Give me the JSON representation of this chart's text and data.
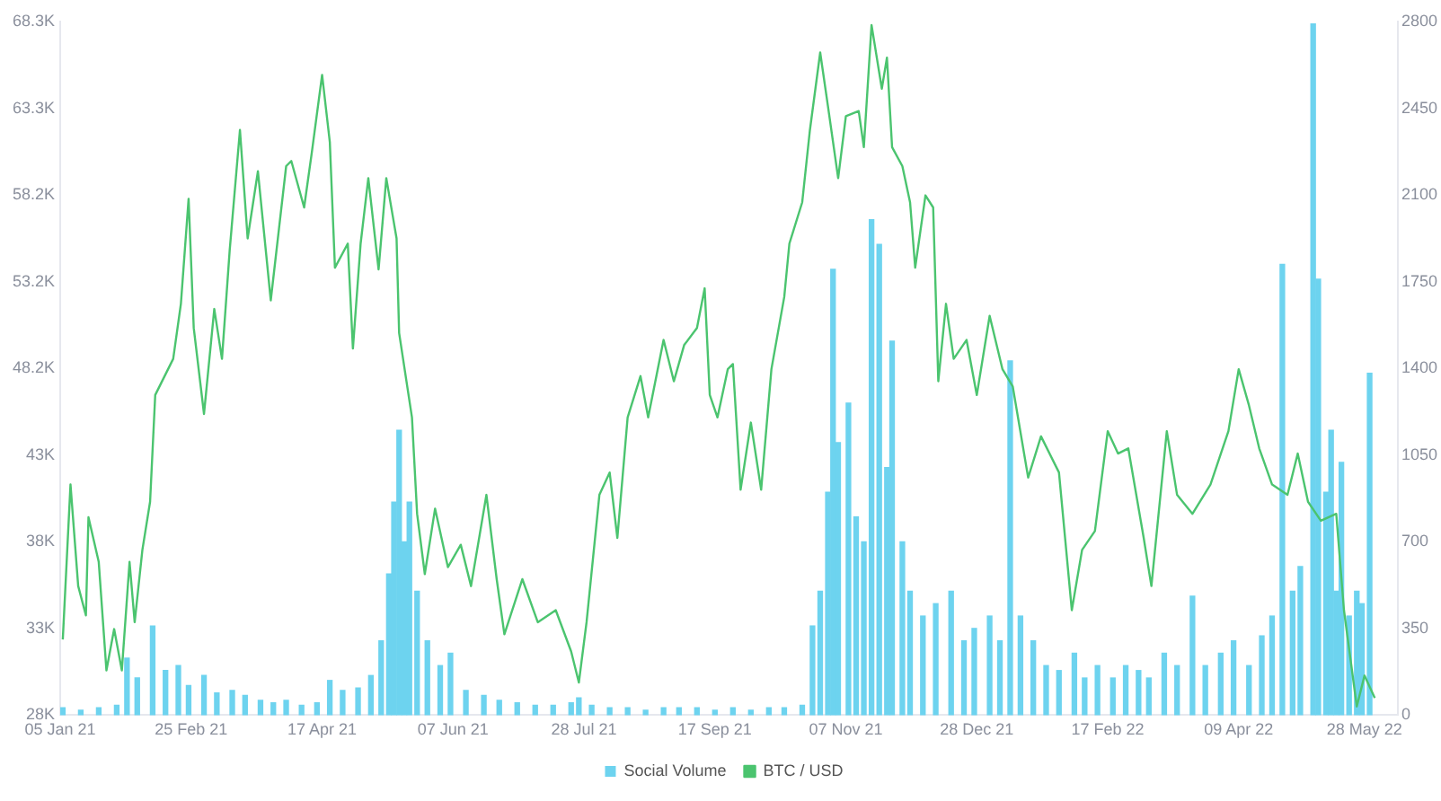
{
  "chart_data": {
    "type": "line",
    "legend": "bottom",
    "grid": false,
    "marker": "none",
    "xlim": [
      "2021-01-05",
      "2022-06-10"
    ],
    "xticks": [
      {
        "value": "2021-01-05",
        "label": "05 Jan 21"
      },
      {
        "value": "2021-02-25",
        "label": "25 Feb 21"
      },
      {
        "value": "2021-04-17",
        "label": "17 Apr 21"
      },
      {
        "value": "2021-06-07",
        "label": "07 Jun 21"
      },
      {
        "value": "2021-07-28",
        "label": "28 Jul 21"
      },
      {
        "value": "2021-09-17",
        "label": "17 Sep 21"
      },
      {
        "value": "2021-11-07",
        "label": "07 Nov 21"
      },
      {
        "value": "2021-12-28",
        "label": "28 Dec 21"
      },
      {
        "value": "2022-02-17",
        "label": "17 Feb 22"
      },
      {
        "value": "2022-04-09",
        "label": "09 Apr 22"
      },
      {
        "value": "2022-05-28",
        "label": "28 May 22"
      }
    ],
    "ylim": [
      28000,
      68300
    ],
    "yticks": [
      {
        "value": 28000,
        "label": "28K"
      },
      {
        "value": 33040,
        "label": "33K"
      },
      {
        "value": 38080,
        "label": "38K"
      },
      {
        "value": 43110,
        "label": "43K"
      },
      {
        "value": 48150,
        "label": "48.2K"
      },
      {
        "value": 53190,
        "label": "53.2K"
      },
      {
        "value": 58220,
        "label": "58.2K"
      },
      {
        "value": 63260,
        "label": "63.3K"
      },
      {
        "value": 68300,
        "label": "68.3K"
      }
    ],
    "y2lim": [
      0,
      2800
    ],
    "y2ticks": [
      0,
      350,
      700,
      1050,
      1400,
      1750,
      2100,
      2450,
      2800
    ],
    "series": [
      {
        "name": "Social Volume",
        "type": "bar",
        "axis": "y2",
        "color": "#6dd3ef",
        "x": [
          "2021-01-06",
          "2021-01-13",
          "2021-01-20",
          "2021-01-27",
          "2021-01-31",
          "2021-02-04",
          "2021-02-10",
          "2021-02-15",
          "2021-02-20",
          "2021-02-24",
          "2021-03-02",
          "2021-03-07",
          "2021-03-13",
          "2021-03-18",
          "2021-03-24",
          "2021-03-29",
          "2021-04-03",
          "2021-04-09",
          "2021-04-15",
          "2021-04-20",
          "2021-04-25",
          "2021-05-01",
          "2021-05-06",
          "2021-05-10",
          "2021-05-13",
          "2021-05-15",
          "2021-05-17",
          "2021-05-19",
          "2021-05-21",
          "2021-05-24",
          "2021-05-28",
          "2021-06-02",
          "2021-06-06",
          "2021-06-12",
          "2021-06-19",
          "2021-06-25",
          "2021-07-02",
          "2021-07-09",
          "2021-07-16",
          "2021-07-23",
          "2021-07-26",
          "2021-07-31",
          "2021-08-07",
          "2021-08-14",
          "2021-08-21",
          "2021-08-28",
          "2021-09-03",
          "2021-09-10",
          "2021-09-17",
          "2021-09-24",
          "2021-10-01",
          "2021-10-08",
          "2021-10-14",
          "2021-10-21",
          "2021-10-25",
          "2021-10-28",
          "2021-10-31",
          "2021-11-02",
          "2021-11-04",
          "2021-11-08",
          "2021-11-11",
          "2021-11-14",
          "2021-11-17",
          "2021-11-20",
          "2021-11-23",
          "2021-11-25",
          "2021-11-29",
          "2021-12-02",
          "2021-12-07",
          "2021-12-12",
          "2021-12-18",
          "2021-12-23",
          "2021-12-27",
          "2022-01-02",
          "2022-01-06",
          "2022-01-10",
          "2022-01-14",
          "2022-01-19",
          "2022-01-24",
          "2022-01-29",
          "2022-02-04",
          "2022-02-08",
          "2022-02-13",
          "2022-02-19",
          "2022-02-24",
          "2022-03-01",
          "2022-03-05",
          "2022-03-11",
          "2022-03-16",
          "2022-03-22",
          "2022-03-27",
          "2022-04-02",
          "2022-04-07",
          "2022-04-13",
          "2022-04-18",
          "2022-04-22",
          "2022-04-26",
          "2022-04-30",
          "2022-05-03",
          "2022-05-08",
          "2022-05-10",
          "2022-05-13",
          "2022-05-15",
          "2022-05-17",
          "2022-05-19",
          "2022-05-22",
          "2022-05-25",
          "2022-05-27",
          "2022-05-30"
        ],
        "values": [
          30,
          20,
          30,
          40,
          230,
          150,
          360,
          180,
          200,
          120,
          160,
          90,
          100,
          80,
          60,
          50,
          60,
          40,
          50,
          140,
          100,
          110,
          160,
          300,
          570,
          860,
          1150,
          700,
          860,
          500,
          300,
          200,
          250,
          100,
          80,
          60,
          50,
          40,
          40,
          50,
          70,
          40,
          30,
          30,
          20,
          30,
          30,
          30,
          20,
          30,
          20,
          30,
          30,
          40,
          360,
          500,
          900,
          1800,
          1100,
          1260,
          800,
          700,
          2000,
          1900,
          1000,
          1510,
          700,
          500,
          400,
          450,
          500,
          300,
          350,
          400,
          300,
          1430,
          400,
          300,
          200,
          180,
          250,
          150,
          200,
          150,
          200,
          180,
          150,
          250,
          200,
          480,
          200,
          250,
          300,
          200,
          320,
          400,
          1820,
          500,
          600,
          2790,
          1760,
          900,
          1150,
          500,
          1020,
          400,
          500,
          450,
          1380
        ]
      },
      {
        "name": "BTC / USD",
        "color": "#4bc46f",
        "x": [
          "2021-01-06",
          "2021-01-09",
          "2021-01-12",
          "2021-01-15",
          "2021-01-16",
          "2021-01-20",
          "2021-01-23",
          "2021-01-26",
          "2021-01-29",
          "2021-02-01",
          "2021-02-03",
          "2021-02-06",
          "2021-02-09",
          "2021-02-11",
          "2021-02-18",
          "2021-02-21",
          "2021-02-24",
          "2021-02-26",
          "2021-03-02",
          "2021-03-06",
          "2021-03-09",
          "2021-03-12",
          "2021-03-16",
          "2021-03-19",
          "2021-03-23",
          "2021-03-28",
          "2021-04-03",
          "2021-04-05",
          "2021-04-10",
          "2021-04-13",
          "2021-04-17",
          "2021-04-20",
          "2021-04-22",
          "2021-04-27",
          "2021-04-29",
          "2021-05-02",
          "2021-05-05",
          "2021-05-09",
          "2021-05-12",
          "2021-05-16",
          "2021-05-17",
          "2021-05-22",
          "2021-05-24",
          "2021-05-27",
          "2021-05-31",
          "2021-06-05",
          "2021-06-10",
          "2021-06-14",
          "2021-06-20",
          "2021-06-24",
          "2021-06-27",
          "2021-07-04",
          "2021-07-10",
          "2021-07-17",
          "2021-07-23",
          "2021-07-26",
          "2021-07-29",
          "2021-08-03",
          "2021-08-07",
          "2021-08-10",
          "2021-08-14",
          "2021-08-19",
          "2021-08-22",
          "2021-08-28",
          "2021-09-01",
          "2021-09-05",
          "2021-09-10",
          "2021-09-13",
          "2021-09-15",
          "2021-09-18",
          "2021-09-22",
          "2021-09-24",
          "2021-09-27",
          "2021-10-01",
          "2021-10-05",
          "2021-10-09",
          "2021-10-14",
          "2021-10-16",
          "2021-10-21",
          "2021-10-24",
          "2021-10-28",
          "2021-10-31",
          "2021-11-04",
          "2021-11-07",
          "2021-11-12",
          "2021-11-14",
          "2021-11-17",
          "2021-11-21",
          "2021-11-23",
          "2021-11-25",
          "2021-11-29",
          "2021-12-02",
          "2021-12-04",
          "2021-12-08",
          "2021-12-11",
          "2021-12-13",
          "2021-12-16",
          "2021-12-19",
          "2021-12-24",
          "2021-12-28",
          "2022-01-02",
          "2022-01-07",
          "2022-01-11",
          "2022-01-17",
          "2022-01-22",
          "2022-01-29",
          "2022-02-03",
          "2022-02-07",
          "2022-02-12",
          "2022-02-17",
          "2022-02-21",
          "2022-02-25",
          "2022-03-03",
          "2022-03-06",
          "2022-03-12",
          "2022-03-16",
          "2022-03-22",
          "2022-03-29",
          "2022-04-05",
          "2022-04-09",
          "2022-04-13",
          "2022-04-17",
          "2022-04-22",
          "2022-04-28",
          "2022-05-02",
          "2022-05-06",
          "2022-05-11",
          "2022-05-17",
          "2022-05-20",
          "2022-05-25",
          "2022-05-28",
          "2022-06-01"
        ],
        "values": [
          32400,
          41400,
          35500,
          33800,
          39500,
          36900,
          30600,
          33000,
          30600,
          36900,
          33400,
          37600,
          40400,
          46600,
          48700,
          51900,
          58000,
          50500,
          45500,
          51600,
          48700,
          55000,
          62000,
          55700,
          59600,
          52100,
          59900,
          60200,
          57500,
          60700,
          65200,
          61300,
          54000,
          55400,
          49300,
          55400,
          59200,
          53900,
          59200,
          55700,
          50200,
          45300,
          39700,
          36200,
          40000,
          36600,
          37900,
          35500,
          40800,
          35900,
          32700,
          35900,
          33400,
          34100,
          31700,
          29900,
          33400,
          40800,
          42100,
          38300,
          45300,
          47700,
          45300,
          49800,
          47400,
          49500,
          50500,
          52800,
          46600,
          45300,
          48100,
          48400,
          41100,
          45000,
          41100,
          48100,
          52300,
          55400,
          57800,
          62000,
          66500,
          63400,
          59200,
          62800,
          63100,
          61000,
          68100,
          64400,
          66200,
          61000,
          59900,
          57800,
          54000,
          58200,
          57500,
          47400,
          51900,
          48700,
          49800,
          46600,
          51200,
          48100,
          47100,
          41800,
          44200,
          42100,
          34100,
          37600,
          38700,
          44500,
          43200,
          43500,
          38300,
          35500,
          44500,
          40800,
          39700,
          41400,
          44500,
          48100,
          46000,
          43500,
          41400,
          40800,
          43200,
          40400,
          39300,
          39700,
          34100,
          28500,
          30300,
          29000
        ]
      }
    ]
  }
}
